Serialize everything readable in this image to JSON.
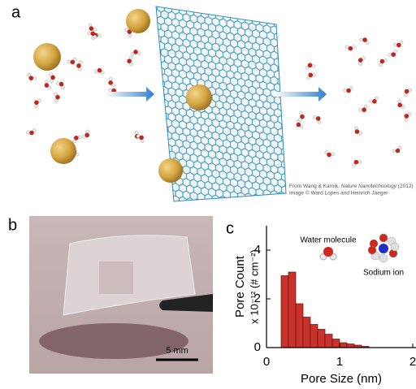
{
  "panels": {
    "a": "a",
    "b": "b",
    "c": "c"
  },
  "credit": {
    "line1_pre": "From Wang & Karnik, ",
    "line1_journal": "Nature Nanotechnology",
    "line1_post": " (2012)",
    "line2": "Image © Ward Lopes and Heinrich Jaeger"
  },
  "scale_bar": "5 mm",
  "chart_data": {
    "type": "histogram",
    "xlabel": "Pore Size (nm)",
    "ylabel": [
      "Pore Count",
      "x 10⁻¹² (# cm⁻²)"
    ],
    "annotations": [
      "Water molecule",
      "Sodium ion"
    ],
    "bins": [
      0.2,
      0.3,
      0.4,
      0.5,
      0.6,
      0.7,
      0.8,
      0.9,
      1.0,
      1.1,
      1.2,
      1.3,
      1.4
    ],
    "values": [
      2.95,
      3.1,
      1.8,
      1.25,
      0.95,
      0.75,
      0.55,
      0.35,
      0.2,
      0.15,
      0.1,
      0.05
    ],
    "color": "#c8322a",
    "xlim": [
      0,
      2
    ],
    "xticks": [
      0,
      1,
      2
    ],
    "ylim": [
      0,
      5
    ],
    "yticks": [
      0,
      2,
      4
    ]
  }
}
